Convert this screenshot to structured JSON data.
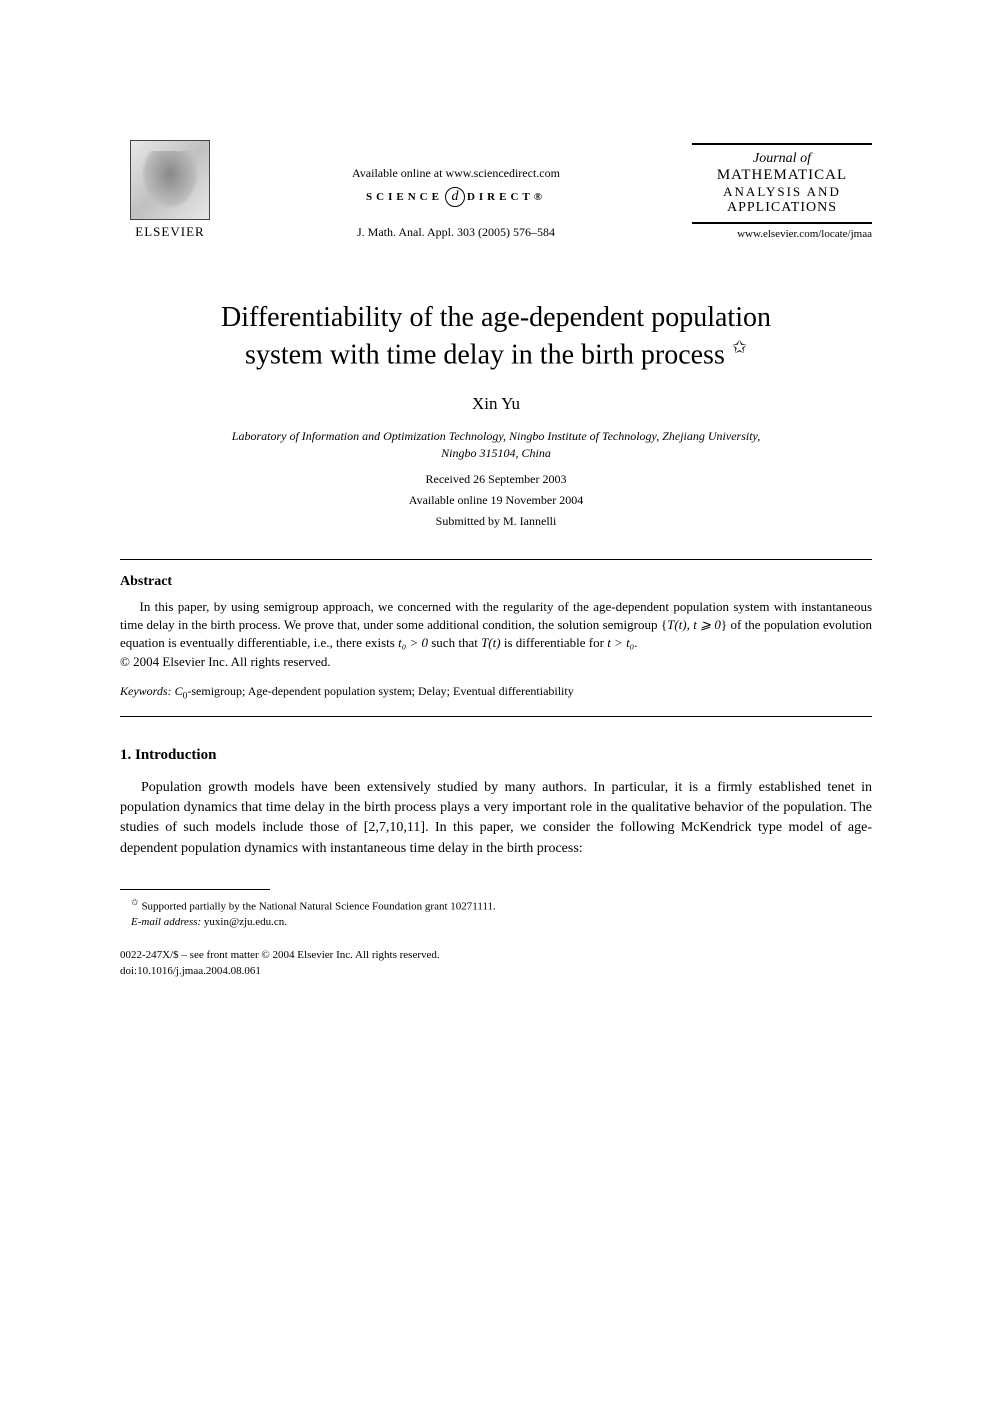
{
  "header": {
    "elsevier_label": "ELSEVIER",
    "available_online": "Available online at www.sciencedirect.com",
    "sciencedirect_left": "SCIENCE",
    "sciencedirect_d": "d",
    "sciencedirect_right": "DIRECT®",
    "journal_citation": "J. Math. Anal. Appl. 303 (2005) 576–584",
    "journal_box": {
      "journal_of": "Journal of",
      "line1": "MATHEMATICAL",
      "line2": "ANALYSIS AND",
      "line3": "APPLICATIONS"
    },
    "locate_url": "www.elsevier.com/locate/jmaa"
  },
  "title_line1": "Differentiability of the age-dependent population",
  "title_line2": "system with time delay in the birth process",
  "title_star": "✩",
  "author": "Xin Yu",
  "affiliation_line1": "Laboratory of Information and Optimization Technology, Ningbo Institute of Technology, Zhejiang University,",
  "affiliation_line2": "Ningbo 315104, China",
  "received": "Received 26 September 2003",
  "available": "Available online 19 November 2004",
  "submitted": "Submitted by M. Iannelli",
  "abstract": {
    "heading": "Abstract",
    "body_pre": "In this paper, by using semigroup approach, we concerned with the regularity of the age-dependent population system with instantaneous time delay in the birth process. We prove that, under some additional condition, the solution semigroup {",
    "body_T_t": "T(t)",
    "body_mid1": ", ",
    "body_t_ge_0": "t ⩾ 0",
    "body_mid2": "} of the population evolution equation is eventually differentiable, i.e., there exists ",
    "body_t0_gt_0": "t₀ > 0",
    "body_mid3": " such that ",
    "body_T_t2": "T(t)",
    "body_mid4": " is differentiable for ",
    "body_t_gt_t0": "t > t₀",
    "body_end": ".",
    "copyright": "© 2004 Elsevier Inc. All rights reserved."
  },
  "keywords": {
    "label": "Keywords:",
    "c0_pre": "C",
    "c0_sub": "0",
    "text": "-semigroup; Age-dependent population system; Delay; Eventual differentiability"
  },
  "section1": {
    "heading": "1. Introduction",
    "body": "Population growth models have been extensively studied by many authors. In particular, it is a firmly established tenet in population dynamics that time delay in the birth process plays a very important role in the qualitative behavior of the population. The studies of such models include those of [2,7,10,11]. In this paper, we consider the following McKendrick type model of age-dependent population dynamics with instantaneous time delay in the birth process:"
  },
  "footnotes": {
    "star": "✩",
    "support": "Supported partially by the National Natural Science Foundation grant 10271111.",
    "email_label": "E-mail address:",
    "email": "yuxin@zju.edu.cn."
  },
  "bottom": {
    "issn": "0022-247X/$ – see front matter © 2004 Elsevier Inc. All rights reserved.",
    "doi": "doi:10.1016/j.jmaa.2004.08.061"
  },
  "colors": {
    "background": "#ffffff",
    "text": "#000000",
    "rule": "#000000"
  }
}
